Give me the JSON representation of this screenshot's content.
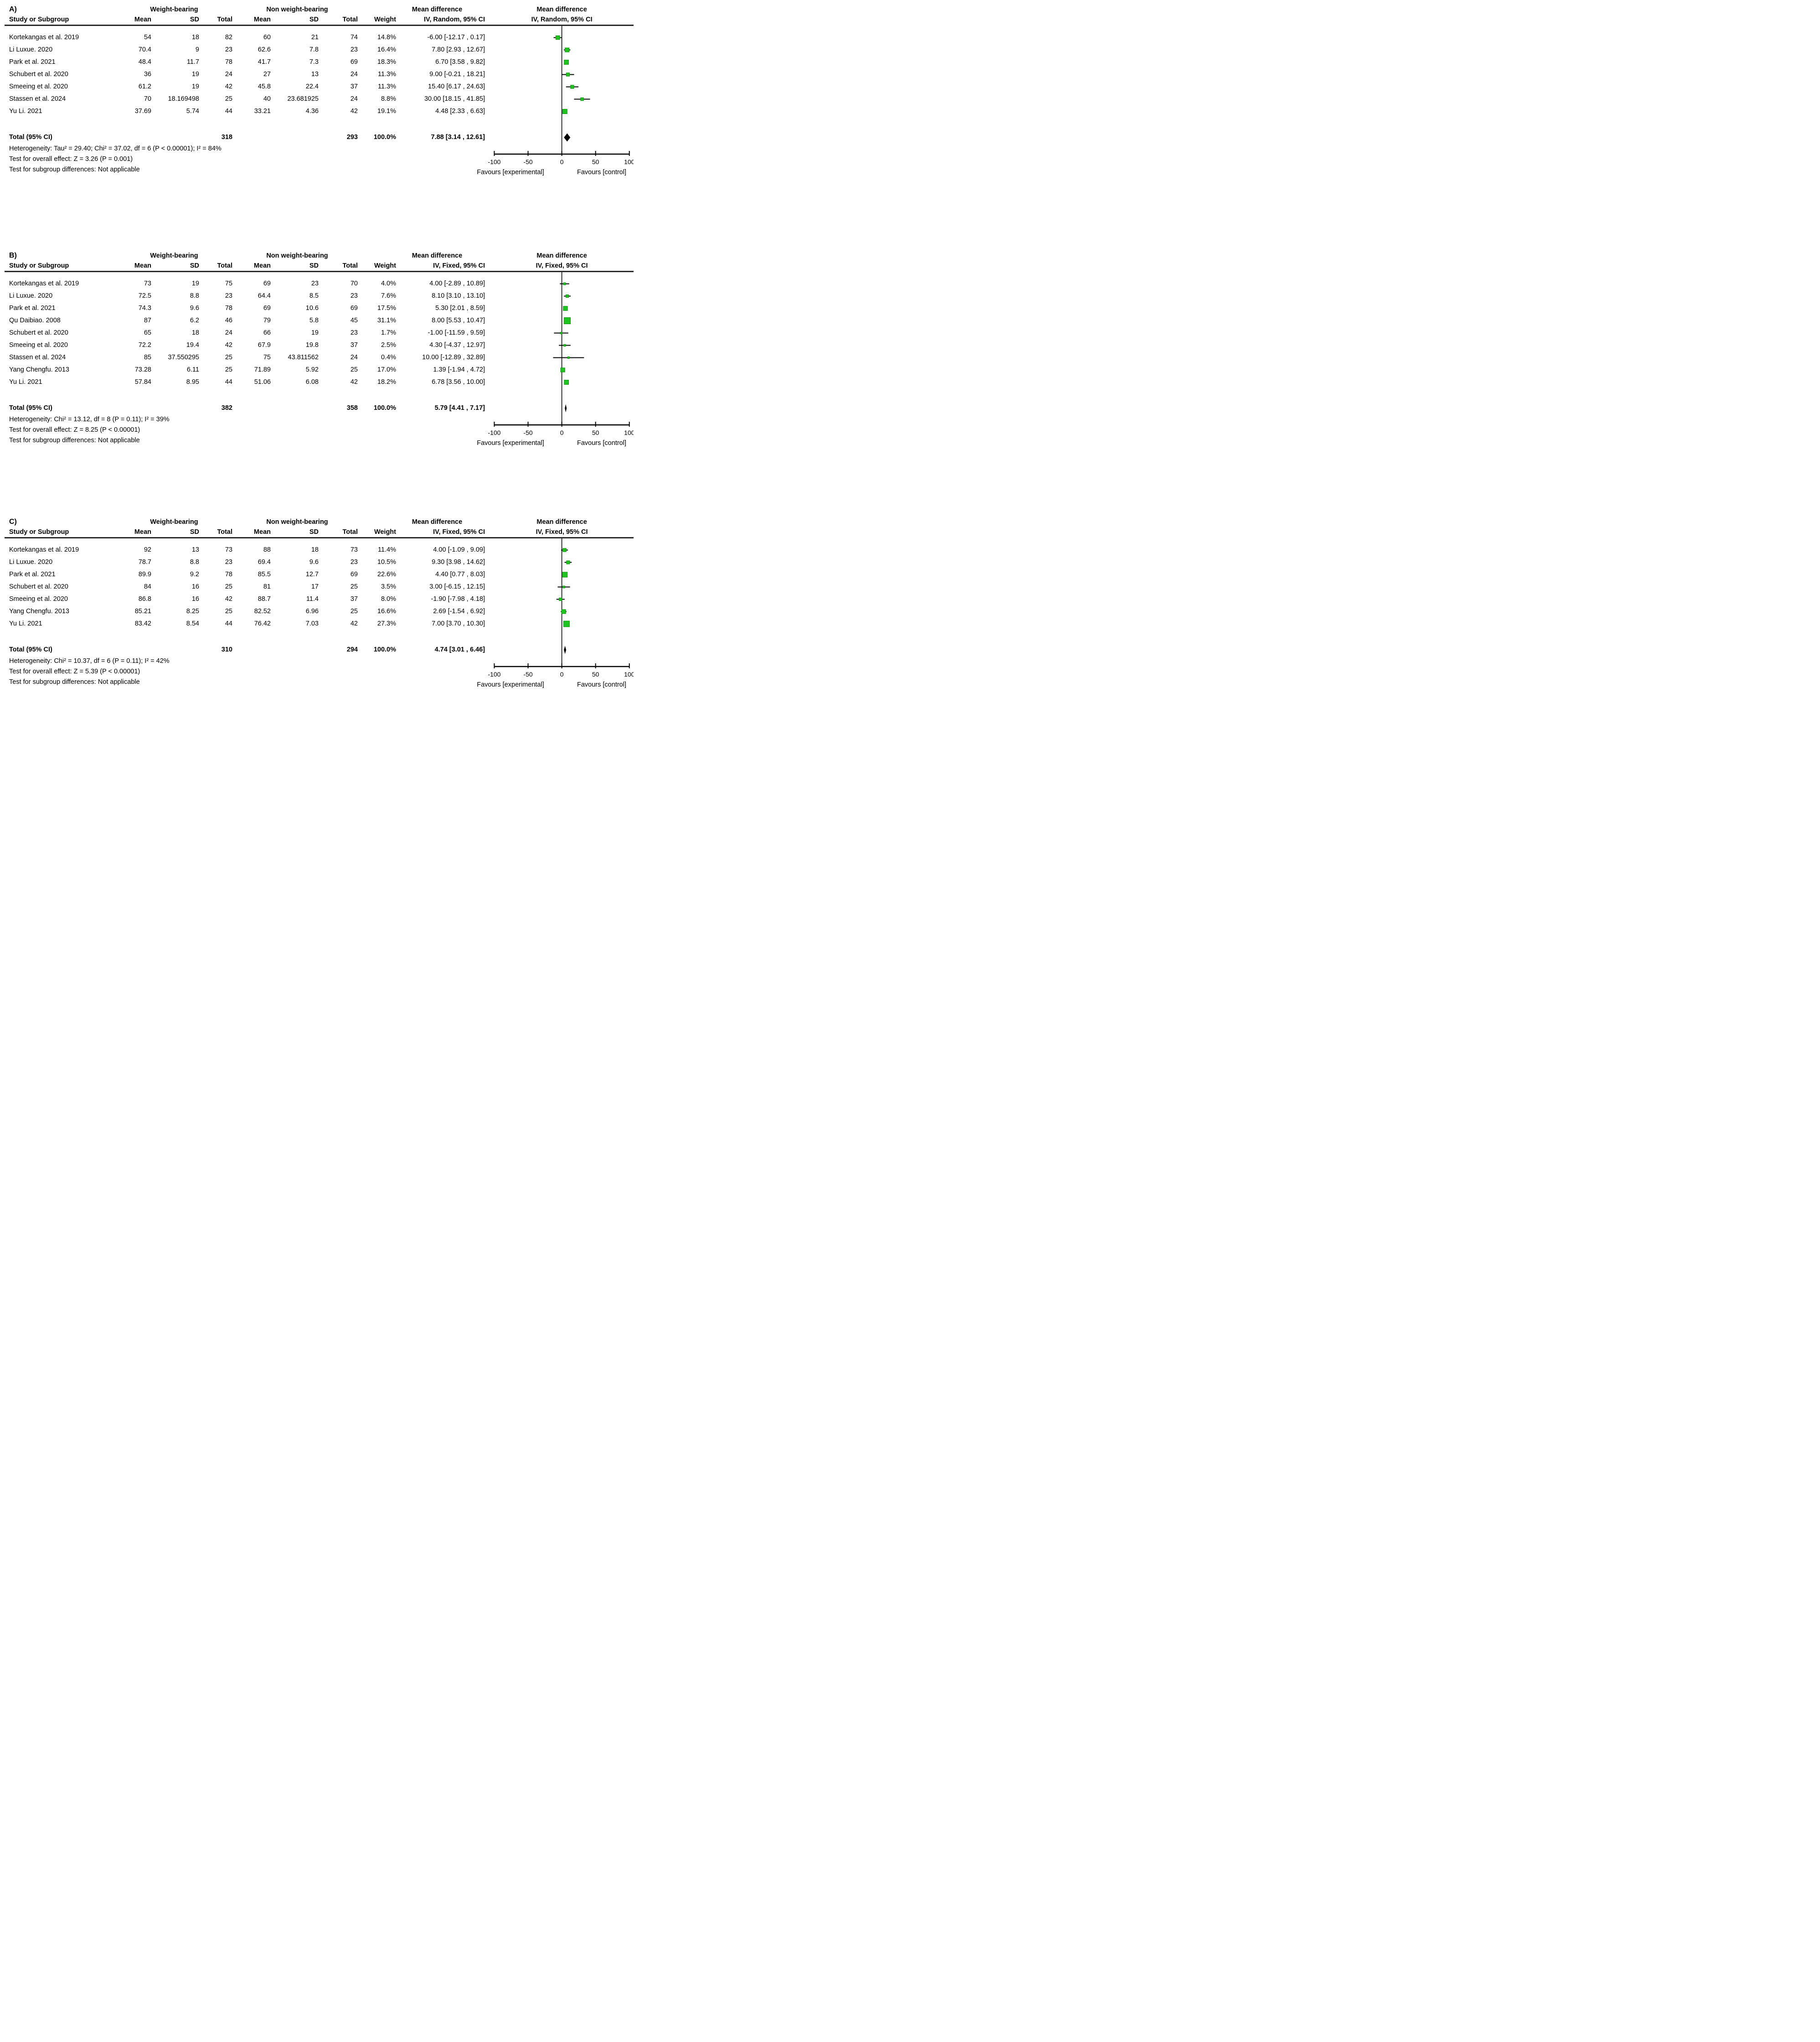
{
  "colors": {
    "marker_fill": "#1FC51F",
    "marker_stroke": "#0E930E",
    "ci_line": "#000000",
    "diamond": "#000000",
    "rule": "#2b2b2b"
  },
  "chart_data": [
    {
      "type": "forest",
      "label": "A)",
      "groups": [
        "Weight-bearing",
        "Non weight-bearing"
      ],
      "col_headers": {
        "study": "Study or Subgroup",
        "mean": "Mean",
        "sd": "SD",
        "total": "Total",
        "weight": "Weight"
      },
      "md_header": {
        "line1": "Mean difference",
        "line2": "IV, Random, 95% CI"
      },
      "plot_header": {
        "line1": "Mean difference",
        "line2": "IV, Random, 95% CI"
      },
      "studies": [
        {
          "name": "Kortekangas et al. 2019",
          "wb_mean": "54",
          "wb_sd": "18",
          "wb_total": "82",
          "nwb_mean": "60",
          "nwb_sd": "21",
          "nwb_total": "74",
          "weight": "14.8%",
          "md": "-6.00 [-12.17 , 0.17]",
          "est": -6.0,
          "lo": -12.17,
          "hi": 0.17,
          "w": 14.8
        },
        {
          "name": "Li Luxue. 2020",
          "wb_mean": "70.4",
          "wb_sd": "9",
          "wb_total": "23",
          "nwb_mean": "62.6",
          "nwb_sd": "7.8",
          "nwb_total": "23",
          "weight": "16.4%",
          "md": "7.80 [2.93 , 12.67]",
          "est": 7.8,
          "lo": 2.93,
          "hi": 12.67,
          "w": 16.4
        },
        {
          "name": "Park et al. 2021",
          "wb_mean": "48.4",
          "wb_sd": "11.7",
          "wb_total": "78",
          "nwb_mean": "41.7",
          "nwb_sd": "7.3",
          "nwb_total": "69",
          "weight": "18.3%",
          "md": "6.70 [3.58 , 9.82]",
          "est": 6.7,
          "lo": 3.58,
          "hi": 9.82,
          "w": 18.3
        },
        {
          "name": "Schubert et al. 2020",
          "wb_mean": "36",
          "wb_sd": "19",
          "wb_total": "24",
          "nwb_mean": "27",
          "nwb_sd": "13",
          "nwb_total": "24",
          "weight": "11.3%",
          "md": "9.00 [-0.21 , 18.21]",
          "est": 9.0,
          "lo": -0.21,
          "hi": 18.21,
          "w": 11.3
        },
        {
          "name": "Smeeing et al. 2020",
          "wb_mean": "61.2",
          "wb_sd": "19",
          "wb_total": "42",
          "nwb_mean": "45.8",
          "nwb_sd": "22.4",
          "nwb_total": "37",
          "weight": "11.3%",
          "md": "15.40 [6.17 , 24.63]",
          "est": 15.4,
          "lo": 6.17,
          "hi": 24.63,
          "w": 11.3
        },
        {
          "name": "Stassen et al. 2024",
          "wb_mean": "70",
          "wb_sd": "18.169498",
          "wb_total": "25",
          "nwb_mean": "40",
          "nwb_sd": "23.681925",
          "nwb_total": "24",
          "weight": "8.8%",
          "md": "30.00 [18.15 , 41.85]",
          "est": 30.0,
          "lo": 18.15,
          "hi": 41.85,
          "w": 8.8
        },
        {
          "name": "Yu Li. 2021",
          "wb_mean": "37.69",
          "wb_sd": "5.74",
          "wb_total": "44",
          "nwb_mean": "33.21",
          "nwb_sd": "4.36",
          "nwb_total": "42",
          "weight": "19.1%",
          "md": "4.48 [2.33 , 6.63]",
          "est": 4.48,
          "lo": 2.33,
          "hi": 6.63,
          "w": 19.1
        }
      ],
      "total": {
        "label": "Total (95% CI)",
        "wb_total": "318",
        "nwb_total": "293",
        "weight": "100.0%",
        "md": "7.88 [3.14 , 12.61]",
        "est": 7.88,
        "lo": 3.14,
        "hi": 12.61
      },
      "footnotes": [
        "Heterogeneity: Tau² = 29.40; Chi² = 37.02, df = 6 (P < 0.00001); I² = 84%",
        "Test for overall effect: Z = 3.26 (P = 0.001)",
        "Test for subgroup differences: Not applicable"
      ],
      "axis": {
        "xlim": [
          -100,
          100
        ],
        "ticks": [
          -100,
          -50,
          0,
          50,
          100
        ],
        "favours_left": "Favours [experimental]",
        "favours_right": "Favours [control]"
      }
    },
    {
      "type": "forest",
      "label": "B)",
      "groups": [
        "Weight-bearing",
        "Non weight-bearing"
      ],
      "col_headers": {
        "study": "Study or Subgroup",
        "mean": "Mean",
        "sd": "SD",
        "total": "Total",
        "weight": "Weight"
      },
      "md_header": {
        "line1": "Mean difference",
        "line2": "IV, Fixed, 95% CI"
      },
      "plot_header": {
        "line1": "Mean difference",
        "line2": "IV, Fixed, 95% CI"
      },
      "studies": [
        {
          "name": "Kortekangas et al. 2019",
          "wb_mean": "73",
          "wb_sd": "19",
          "wb_total": "75",
          "nwb_mean": "69",
          "nwb_sd": "23",
          "nwb_total": "70",
          "weight": "4.0%",
          "md": "4.00 [-2.89 , 10.89]",
          "est": 4.0,
          "lo": -2.89,
          "hi": 10.89,
          "w": 4.0
        },
        {
          "name": "Li Luxue. 2020",
          "wb_mean": "72.5",
          "wb_sd": "8.8",
          "wb_total": "23",
          "nwb_mean": "64.4",
          "nwb_sd": "8.5",
          "nwb_total": "23",
          "weight": "7.6%",
          "md": "8.10 [3.10 , 13.10]",
          "est": 8.1,
          "lo": 3.1,
          "hi": 13.1,
          "w": 7.6
        },
        {
          "name": "Park et al. 2021",
          "wb_mean": "74.3",
          "wb_sd": "9.6",
          "wb_total": "78",
          "nwb_mean": "69",
          "nwb_sd": "10.6",
          "nwb_total": "69",
          "weight": "17.5%",
          "md": "5.30 [2.01 , 8.59]",
          "est": 5.3,
          "lo": 2.01,
          "hi": 8.59,
          "w": 17.5
        },
        {
          "name": "Qu Daibiao. 2008",
          "wb_mean": "87",
          "wb_sd": "6.2",
          "wb_total": "46",
          "nwb_mean": "79",
          "nwb_sd": "5.8",
          "nwb_total": "45",
          "weight": "31.1%",
          "md": "8.00 [5.53 , 10.47]",
          "est": 8.0,
          "lo": 5.53,
          "hi": 10.47,
          "w": 31.1
        },
        {
          "name": "Schubert et al. 2020",
          "wb_mean": "65",
          "wb_sd": "18",
          "wb_total": "24",
          "nwb_mean": "66",
          "nwb_sd": "19",
          "nwb_total": "23",
          "weight": "1.7%",
          "md": "-1.00 [-11.59 , 9.59]",
          "est": -1.0,
          "lo": -11.59,
          "hi": 9.59,
          "w": 1.7
        },
        {
          "name": "Smeeing et al. 2020",
          "wb_mean": "72.2",
          "wb_sd": "19.4",
          "wb_total": "42",
          "nwb_mean": "67.9",
          "nwb_sd": "19.8",
          "nwb_total": "37",
          "weight": "2.5%",
          "md": "4.30 [-4.37 , 12.97]",
          "est": 4.3,
          "lo": -4.37,
          "hi": 12.97,
          "w": 2.5
        },
        {
          "name": "Stassen et al. 2024",
          "wb_mean": "85",
          "wb_sd": "37.550295",
          "wb_total": "25",
          "nwb_mean": "75",
          "nwb_sd": "43.811562",
          "nwb_total": "24",
          "weight": "0.4%",
          "md": "10.00 [-12.89 , 32.89]",
          "est": 10.0,
          "lo": -12.89,
          "hi": 32.89,
          "w": 0.4
        },
        {
          "name": "Yang Chengfu. 2013",
          "wb_mean": "73.28",
          "wb_sd": "6.11",
          "wb_total": "25",
          "nwb_mean": "71.89",
          "nwb_sd": "5.92",
          "nwb_total": "25",
          "weight": "17.0%",
          "md": "1.39 [-1.94 , 4.72]",
          "est": 1.39,
          "lo": -1.94,
          "hi": 4.72,
          "w": 17.0
        },
        {
          "name": "Yu Li. 2021",
          "wb_mean": "57.84",
          "wb_sd": "8.95",
          "wb_total": "44",
          "nwb_mean": "51.06",
          "nwb_sd": "6.08",
          "nwb_total": "42",
          "weight": "18.2%",
          "md": "6.78 [3.56 , 10.00]",
          "est": 6.78,
          "lo": 3.56,
          "hi": 10.0,
          "w": 18.2
        }
      ],
      "total": {
        "label": "Total (95% CI)",
        "wb_total": "382",
        "nwb_total": "358",
        "weight": "100.0%",
        "md": "5.79 [4.41 , 7.17]",
        "est": 5.79,
        "lo": 4.41,
        "hi": 7.17
      },
      "footnotes": [
        "Heterogeneity: Chi² = 13.12, df = 8 (P = 0.11); I² = 39%",
        "Test for overall effect: Z = 8.25 (P < 0.00001)",
        "Test for subgroup differences: Not applicable"
      ],
      "axis": {
        "xlim": [
          -100,
          100
        ],
        "ticks": [
          -100,
          -50,
          0,
          50,
          100
        ],
        "favours_left": "Favours [experimental]",
        "favours_right": "Favours [control]"
      }
    },
    {
      "type": "forest",
      "label": "C)",
      "groups": [
        "Weight-bearing",
        "Non weight-bearing"
      ],
      "col_headers": {
        "study": "Study or Subgroup",
        "mean": "Mean",
        "sd": "SD",
        "total": "Total",
        "weight": "Weight"
      },
      "md_header": {
        "line1": "Mean difference",
        "line2": "IV, Fixed, 95% CI"
      },
      "plot_header": {
        "line1": "Mean difference",
        "line2": "IV, Fixed, 95% CI"
      },
      "studies": [
        {
          "name": "Kortekangas et al. 2019",
          "wb_mean": "92",
          "wb_sd": "13",
          "wb_total": "73",
          "nwb_mean": "88",
          "nwb_sd": "18",
          "nwb_total": "73",
          "weight": "11.4%",
          "md": "4.00 [-1.09 , 9.09]",
          "est": 4.0,
          "lo": -1.09,
          "hi": 9.09,
          "w": 11.4
        },
        {
          "name": "Li Luxue. 2020",
          "wb_mean": "78.7",
          "wb_sd": "8.8",
          "wb_total": "23",
          "nwb_mean": "69.4",
          "nwb_sd": "9.6",
          "nwb_total": "23",
          "weight": "10.5%",
          "md": "9.30 [3.98 , 14.62]",
          "est": 9.3,
          "lo": 3.98,
          "hi": 14.62,
          "w": 10.5
        },
        {
          "name": "Park et al. 2021",
          "wb_mean": "89.9",
          "wb_sd": "9.2",
          "wb_total": "78",
          "nwb_mean": "85.5",
          "nwb_sd": "12.7",
          "nwb_total": "69",
          "weight": "22.6%",
          "md": "4.40 [0.77 , 8.03]",
          "est": 4.4,
          "lo": 0.77,
          "hi": 8.03,
          "w": 22.6
        },
        {
          "name": "Schubert et al. 2020",
          "wb_mean": "84",
          "wb_sd": "16",
          "wb_total": "25",
          "nwb_mean": "81",
          "nwb_sd": "17",
          "nwb_total": "25",
          "weight": "3.5%",
          "md": "3.00 [-6.15 , 12.15]",
          "est": 3.0,
          "lo": -6.15,
          "hi": 12.15,
          "w": 3.5
        },
        {
          "name": "Smeeing et al. 2020",
          "wb_mean": "86.8",
          "wb_sd": "16",
          "wb_total": "42",
          "nwb_mean": "88.7",
          "nwb_sd": "11.4",
          "nwb_total": "37",
          "weight": "8.0%",
          "md": "-1.90 [-7.98 , 4.18]",
          "est": -1.9,
          "lo": -7.98,
          "hi": 4.18,
          "w": 8.0
        },
        {
          "name": "Yang Chengfu. 2013",
          "wb_mean": "85.21",
          "wb_sd": "8.25",
          "wb_total": "25",
          "nwb_mean": "82.52",
          "nwb_sd": "6.96",
          "nwb_total": "25",
          "weight": "16.6%",
          "md": "2.69 [-1.54 , 6.92]",
          "est": 2.69,
          "lo": -1.54,
          "hi": 6.92,
          "w": 16.6
        },
        {
          "name": "Yu Li. 2021",
          "wb_mean": "83.42",
          "wb_sd": "8.54",
          "wb_total": "44",
          "nwb_mean": "76.42",
          "nwb_sd": "7.03",
          "nwb_total": "42",
          "weight": "27.3%",
          "md": "7.00 [3.70 , 10.30]",
          "est": 7.0,
          "lo": 3.7,
          "hi": 10.3,
          "w": 27.3
        }
      ],
      "total": {
        "label": "Total (95% CI)",
        "wb_total": "310",
        "nwb_total": "294",
        "weight": "100.0%",
        "md": "4.74 [3.01 , 6.46]",
        "est": 4.74,
        "lo": 3.01,
        "hi": 6.46
      },
      "footnotes": [
        "Heterogeneity: Chi² = 10.37, df = 6 (P = 0.11); I² = 42%",
        "Test for overall effect: Z = 5.39 (P < 0.00001)",
        "Test for subgroup differences: Not applicable"
      ],
      "axis": {
        "xlim": [
          -100,
          100
        ],
        "ticks": [
          -100,
          -50,
          0,
          50,
          100
        ],
        "favours_left": "Favours [experimental]",
        "favours_right": "Favours [control]"
      }
    }
  ]
}
